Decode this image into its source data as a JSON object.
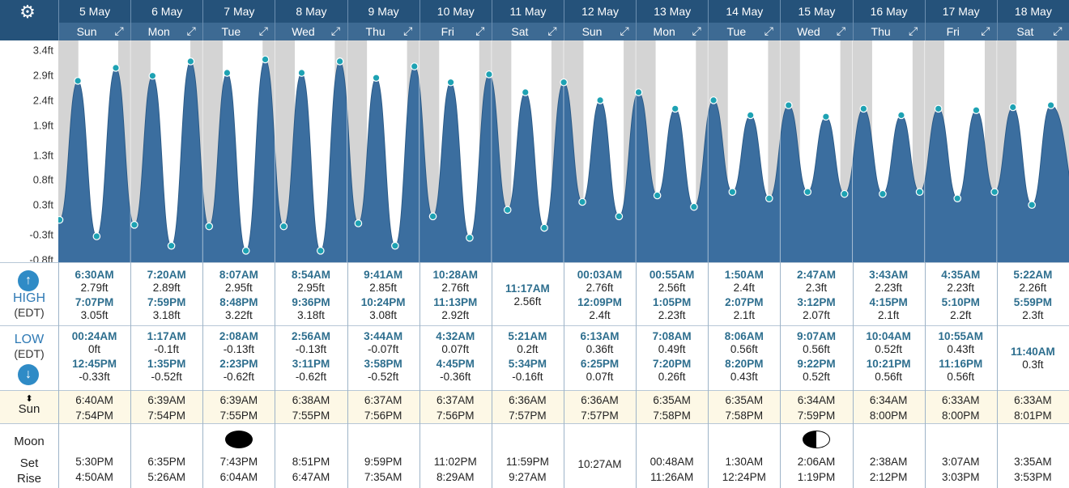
{
  "header": {
    "settings_icon": "gear-icon",
    "days": [
      {
        "date": "5 May",
        "dow": "Sun"
      },
      {
        "date": "6 May",
        "dow": "Mon"
      },
      {
        "date": "7 May",
        "dow": "Tue"
      },
      {
        "date": "8 May",
        "dow": "Wed"
      },
      {
        "date": "9 May",
        "dow": "Thu"
      },
      {
        "date": "10 May",
        "dow": "Fri"
      },
      {
        "date": "11 May",
        "dow": "Sat"
      },
      {
        "date": "12 May",
        "dow": "Sun"
      },
      {
        "date": "13 May",
        "dow": "Mon"
      },
      {
        "date": "14 May",
        "dow": "Tue"
      },
      {
        "date": "15 May",
        "dow": "Wed"
      },
      {
        "date": "16 May",
        "dow": "Thu"
      },
      {
        "date": "17 May",
        "dow": "Fri"
      },
      {
        "date": "18 May",
        "dow": "Sat"
      }
    ]
  },
  "chart_data": {
    "type": "area",
    "title": "",
    "xlabel": "",
    "ylabel": "",
    "y_ticks": [
      "3.4ft",
      "2.9ft",
      "2.4ft",
      "1.9ft",
      "1.3ft",
      "0.8ft",
      "0.3ft",
      "-0.3ft",
      "-0.8ft"
    ],
    "ylim": [
      -0.85,
      3.6
    ],
    "x_range_days": [
      "5 May",
      "18 May"
    ],
    "grid": "vertical day lines, grey night shading",
    "fill_color": "#3b6e9f",
    "night_color": "#d4d4d4",
    "point_color": "#1ea2b3",
    "series": [
      {
        "points": [
          {
            "day": "5 May",
            "time": "00:24AM",
            "ft": 0.0
          },
          {
            "day": "5 May",
            "time": "6:30AM",
            "ft": 2.79
          },
          {
            "day": "5 May",
            "time": "12:45PM",
            "ft": -0.33
          },
          {
            "day": "5 May",
            "time": "7:07PM",
            "ft": 3.05
          },
          {
            "day": "6 May",
            "time": "1:17AM",
            "ft": -0.1
          },
          {
            "day": "6 May",
            "time": "7:20AM",
            "ft": 2.89
          },
          {
            "day": "6 May",
            "time": "1:35PM",
            "ft": -0.52
          },
          {
            "day": "6 May",
            "time": "7:59PM",
            "ft": 3.18
          },
          {
            "day": "7 May",
            "time": "2:08AM",
            "ft": -0.13
          },
          {
            "day": "7 May",
            "time": "8:07AM",
            "ft": 2.95
          },
          {
            "day": "7 May",
            "time": "2:23PM",
            "ft": -0.62
          },
          {
            "day": "7 May",
            "time": "8:48PM",
            "ft": 3.22
          },
          {
            "day": "8 May",
            "time": "2:56AM",
            "ft": -0.13
          },
          {
            "day": "8 May",
            "time": "8:54AM",
            "ft": 2.95
          },
          {
            "day": "8 May",
            "time": "3:11PM",
            "ft": -0.62
          },
          {
            "day": "8 May",
            "time": "9:36PM",
            "ft": 3.18
          },
          {
            "day": "9 May",
            "time": "3:44AM",
            "ft": -0.07
          },
          {
            "day": "9 May",
            "time": "9:41AM",
            "ft": 2.85
          },
          {
            "day": "9 May",
            "time": "3:58PM",
            "ft": -0.52
          },
          {
            "day": "9 May",
            "time": "10:24PM",
            "ft": 3.08
          },
          {
            "day": "10 May",
            "time": "4:32AM",
            "ft": 0.07
          },
          {
            "day": "10 May",
            "time": "10:28AM",
            "ft": 2.76
          },
          {
            "day": "10 May",
            "time": "4:45PM",
            "ft": -0.36
          },
          {
            "day": "10 May",
            "time": "11:13PM",
            "ft": 2.92
          },
          {
            "day": "11 May",
            "time": "5:21AM",
            "ft": 0.2
          },
          {
            "day": "11 May",
            "time": "11:17AM",
            "ft": 2.56
          },
          {
            "day": "11 May",
            "time": "5:34PM",
            "ft": -0.16
          },
          {
            "day": "12 May",
            "time": "00:03AM",
            "ft": 2.76
          },
          {
            "day": "12 May",
            "time": "6:13AM",
            "ft": 0.36
          },
          {
            "day": "12 May",
            "time": "12:09PM",
            "ft": 2.4
          },
          {
            "day": "12 May",
            "time": "6:25PM",
            "ft": 0.07
          },
          {
            "day": "13 May",
            "time": "00:55AM",
            "ft": 2.56
          },
          {
            "day": "13 May",
            "time": "7:08AM",
            "ft": 0.49
          },
          {
            "day": "13 May",
            "time": "1:05PM",
            "ft": 2.23
          },
          {
            "day": "13 May",
            "time": "7:20PM",
            "ft": 0.26
          },
          {
            "day": "14 May",
            "time": "1:50AM",
            "ft": 2.4
          },
          {
            "day": "14 May",
            "time": "8:06AM",
            "ft": 0.56
          },
          {
            "day": "14 May",
            "time": "2:07PM",
            "ft": 2.1
          },
          {
            "day": "14 May",
            "time": "8:20PM",
            "ft": 0.43
          },
          {
            "day": "15 May",
            "time": "2:47AM",
            "ft": 2.3
          },
          {
            "day": "15 May",
            "time": "9:07AM",
            "ft": 0.56
          },
          {
            "day": "15 May",
            "time": "3:12PM",
            "ft": 2.07
          },
          {
            "day": "15 May",
            "time": "9:22PM",
            "ft": 0.52
          },
          {
            "day": "16 May",
            "time": "3:43AM",
            "ft": 2.23
          },
          {
            "day": "16 May",
            "time": "10:04AM",
            "ft": 0.52
          },
          {
            "day": "16 May",
            "time": "4:15PM",
            "ft": 2.1
          },
          {
            "day": "16 May",
            "time": "10:21PM",
            "ft": 0.56
          },
          {
            "day": "17 May",
            "time": "4:35AM",
            "ft": 2.23
          },
          {
            "day": "17 May",
            "time": "10:55AM",
            "ft": 0.43
          },
          {
            "day": "17 May",
            "time": "5:10PM",
            "ft": 2.2
          },
          {
            "day": "17 May",
            "time": "11:16PM",
            "ft": 0.56
          },
          {
            "day": "18 May",
            "time": "5:22AM",
            "ft": 2.26
          },
          {
            "day": "18 May",
            "time": "11:40AM",
            "ft": 0.3
          },
          {
            "day": "18 May",
            "time": "5:59PM",
            "ft": 2.3
          }
        ]
      }
    ],
    "sun": [
      {
        "rise": "6:40AM",
        "set": "7:54PM"
      },
      {
        "rise": "6:39AM",
        "set": "7:54PM"
      },
      {
        "rise": "6:39AM",
        "set": "7:55PM"
      },
      {
        "rise": "6:38AM",
        "set": "7:55PM"
      },
      {
        "rise": "6:37AM",
        "set": "7:56PM"
      },
      {
        "rise": "6:37AM",
        "set": "7:56PM"
      },
      {
        "rise": "6:36AM",
        "set": "7:57PM"
      },
      {
        "rise": "6:36AM",
        "set": "7:57PM"
      },
      {
        "rise": "6:35AM",
        "set": "7:58PM"
      },
      {
        "rise": "6:35AM",
        "set": "7:58PM"
      },
      {
        "rise": "6:34AM",
        "set": "7:59PM"
      },
      {
        "rise": "6:34AM",
        "set": "8:00PM"
      },
      {
        "rise": "6:33AM",
        "set": "8:00PM"
      },
      {
        "rise": "6:33AM",
        "set": "8:01PM"
      }
    ]
  },
  "table": {
    "high_label": "HIGH",
    "low_label": "LOW",
    "tz": "(EDT)",
    "sun_label": "Sun",
    "moon_label": "Moon",
    "set_label": "Set",
    "rise_label": "Rise",
    "high": [
      [
        {
          "t": "6:30AM",
          "h": "2.79ft"
        },
        {
          "t": "7:07PM",
          "h": "3.05ft"
        }
      ],
      [
        {
          "t": "7:20AM",
          "h": "2.89ft"
        },
        {
          "t": "7:59PM",
          "h": "3.18ft"
        }
      ],
      [
        {
          "t": "8:07AM",
          "h": "2.95ft"
        },
        {
          "t": "8:48PM",
          "h": "3.22ft"
        }
      ],
      [
        {
          "t": "8:54AM",
          "h": "2.95ft"
        },
        {
          "t": "9:36PM",
          "h": "3.18ft"
        }
      ],
      [
        {
          "t": "9:41AM",
          "h": "2.85ft"
        },
        {
          "t": "10:24PM",
          "h": "3.08ft"
        }
      ],
      [
        {
          "t": "10:28AM",
          "h": "2.76ft"
        },
        {
          "t": "11:13PM",
          "h": "2.92ft"
        }
      ],
      [
        {
          "t": "11:17AM",
          "h": "2.56ft"
        }
      ],
      [
        {
          "t": "00:03AM",
          "h": "2.76ft"
        },
        {
          "t": "12:09PM",
          "h": "2.4ft"
        }
      ],
      [
        {
          "t": "00:55AM",
          "h": "2.56ft"
        },
        {
          "t": "1:05PM",
          "h": "2.23ft"
        }
      ],
      [
        {
          "t": "1:50AM",
          "h": "2.4ft"
        },
        {
          "t": "2:07PM",
          "h": "2.1ft"
        }
      ],
      [
        {
          "t": "2:47AM",
          "h": "2.3ft"
        },
        {
          "t": "3:12PM",
          "h": "2.07ft"
        }
      ],
      [
        {
          "t": "3:43AM",
          "h": "2.23ft"
        },
        {
          "t": "4:15PM",
          "h": "2.1ft"
        }
      ],
      [
        {
          "t": "4:35AM",
          "h": "2.23ft"
        },
        {
          "t": "5:10PM",
          "h": "2.2ft"
        }
      ],
      [
        {
          "t": "5:22AM",
          "h": "2.26ft"
        },
        {
          "t": "5:59PM",
          "h": "2.3ft"
        }
      ]
    ],
    "low": [
      [
        {
          "t": "00:24AM",
          "h": "0ft"
        },
        {
          "t": "12:45PM",
          "h": "-0.33ft"
        }
      ],
      [
        {
          "t": "1:17AM",
          "h": "-0.1ft"
        },
        {
          "t": "1:35PM",
          "h": "-0.52ft"
        }
      ],
      [
        {
          "t": "2:08AM",
          "h": "-0.13ft"
        },
        {
          "t": "2:23PM",
          "h": "-0.62ft"
        }
      ],
      [
        {
          "t": "2:56AM",
          "h": "-0.13ft"
        },
        {
          "t": "3:11PM",
          "h": "-0.62ft"
        }
      ],
      [
        {
          "t": "3:44AM",
          "h": "-0.07ft"
        },
        {
          "t": "3:58PM",
          "h": "-0.52ft"
        }
      ],
      [
        {
          "t": "4:32AM",
          "h": "0.07ft"
        },
        {
          "t": "4:45PM",
          "h": "-0.36ft"
        }
      ],
      [
        {
          "t": "5:21AM",
          "h": "0.2ft"
        },
        {
          "t": "5:34PM",
          "h": "-0.16ft"
        }
      ],
      [
        {
          "t": "6:13AM",
          "h": "0.36ft"
        },
        {
          "t": "6:25PM",
          "h": "0.07ft"
        }
      ],
      [
        {
          "t": "7:08AM",
          "h": "0.49ft"
        },
        {
          "t": "7:20PM",
          "h": "0.26ft"
        }
      ],
      [
        {
          "t": "8:06AM",
          "h": "0.56ft"
        },
        {
          "t": "8:20PM",
          "h": "0.43ft"
        }
      ],
      [
        {
          "t": "9:07AM",
          "h": "0.56ft"
        },
        {
          "t": "9:22PM",
          "h": "0.52ft"
        }
      ],
      [
        {
          "t": "10:04AM",
          "h": "0.52ft"
        },
        {
          "t": "10:21PM",
          "h": "0.56ft"
        }
      ],
      [
        {
          "t": "10:55AM",
          "h": "0.43ft"
        },
        {
          "t": "11:16PM",
          "h": "0.56ft"
        }
      ],
      [
        {
          "t": "11:40AM",
          "h": "0.3ft"
        }
      ]
    ],
    "moon": [
      {
        "set": "5:30PM",
        "rise": "4:50AM"
      },
      {
        "set": "6:35PM",
        "rise": "5:26AM"
      },
      {
        "set": "7:43PM",
        "rise": "6:04AM",
        "phase": "new"
      },
      {
        "set": "8:51PM",
        "rise": "6:47AM"
      },
      {
        "set": "9:59PM",
        "rise": "7:35AM"
      },
      {
        "set": "11:02PM",
        "rise": "8:29AM"
      },
      {
        "set": "11:59PM",
        "rise": "9:27AM"
      },
      {
        "set": "",
        "rise": "10:27AM"
      },
      {
        "set": "00:48AM",
        "rise": "11:26AM"
      },
      {
        "set": "1:30AM",
        "rise": "12:24PM"
      },
      {
        "set": "2:06AM",
        "rise": "1:19PM",
        "phase": "first-quarter"
      },
      {
        "set": "2:38AM",
        "rise": "2:12PM"
      },
      {
        "set": "3:07AM",
        "rise": "3:03PM"
      },
      {
        "set": "3:35AM",
        "rise": "3:53PM"
      }
    ]
  }
}
